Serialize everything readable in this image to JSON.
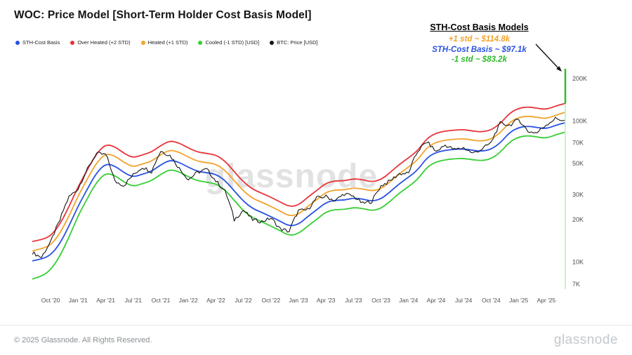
{
  "title": "WOC: Price Model [Short-Term Holder Cost Basis Model]",
  "legend": {
    "items": [
      {
        "label": "STH-Cost Basis",
        "color": "#2952e3"
      },
      {
        "label": "Over Heated (+2 STD)",
        "color": "#e8343a"
      },
      {
        "label": "Heated (+1 STD)",
        "color": "#f2a32c"
      },
      {
        "label": "Cooled (-1 STD) [USD]",
        "color": "#35cf33"
      },
      {
        "label": "BTC: Price [USD]",
        "color": "#161616"
      }
    ]
  },
  "annotation": {
    "title": "STH-Cost Basis Models",
    "lines": [
      {
        "text": "+1 std ~ $114.8k",
        "color": "#f2a32c"
      },
      {
        "text": "STH-Cost Basis ~ $97.1k",
        "color": "#2952e3"
      },
      {
        "text": "-1 std ~ $83.2k",
        "color": "#2db82d"
      }
    ]
  },
  "watermark": "glassnode",
  "footer": {
    "copyright": "© 2025 Glassnode. All Rights Reserved.",
    "brand": "glassnode"
  },
  "chart_data": {
    "type": "line",
    "title": "Short-Term Holder Cost Basis Model",
    "x_start": "2020-08",
    "x_step": "1 month",
    "points": 59,
    "value_unit": "thousand USD",
    "y_scale": "log",
    "y_range": [
      6.3,
      240
    ],
    "grid": false,
    "legend_position": "top-left",
    "y_ticks": [
      {
        "label": "200K",
        "value": 200
      },
      {
        "label": "100K",
        "value": 100
      },
      {
        "label": "70K",
        "value": 70
      },
      {
        "label": "50K",
        "value": 50
      },
      {
        "label": "30K",
        "value": 30
      },
      {
        "label": "20K",
        "value": 20
      },
      {
        "label": "10K",
        "value": 10
      },
      {
        "label": "7K",
        "value": 7
      }
    ],
    "x_ticks": [
      {
        "index": 2,
        "label": "Oct '20"
      },
      {
        "index": 5,
        "label": "Jan '21"
      },
      {
        "index": 8,
        "label": "Apr '21"
      },
      {
        "index": 11,
        "label": "Jul '21"
      },
      {
        "index": 14,
        "label": "Oct '21"
      },
      {
        "index": 17,
        "label": "Jan '22"
      },
      {
        "index": 20,
        "label": "Apr '22"
      },
      {
        "index": 23,
        "label": "Jul '22"
      },
      {
        "index": 26,
        "label": "Oct '22"
      },
      {
        "index": 29,
        "label": "Jan '23"
      },
      {
        "index": 32,
        "label": "Apr '23"
      },
      {
        "index": 35,
        "label": "Jul '23"
      },
      {
        "index": 38,
        "label": "Oct '23"
      },
      {
        "index": 41,
        "label": "Jan '24"
      },
      {
        "index": 44,
        "label": "Apr '24"
      },
      {
        "index": 47,
        "label": "Jul '24"
      },
      {
        "index": 50,
        "label": "Oct '24"
      },
      {
        "index": 53,
        "label": "Jan '25"
      },
      {
        "index": 56,
        "label": "Apr '25"
      }
    ],
    "series": [
      {
        "name": "Over Heated (+2 STD)",
        "color": "#e8343a",
        "width": 1.8,
        "values": [
          14.0,
          14.4,
          15.3,
          18.5,
          24.7,
          34.3,
          45.2,
          58.9,
          68.5,
          65.8,
          58.9,
          54.8,
          57.5,
          60.3,
          67.1,
          72.6,
          69.9,
          64.4,
          60.3,
          58.9,
          57.5,
          52.1,
          43.8,
          37.0,
          32.9,
          30.8,
          28.8,
          26.7,
          24.7,
          25.3,
          28.8,
          32.2,
          36.3,
          37.7,
          37.7,
          39.0,
          38.4,
          37.0,
          38.4,
          43.2,
          49.3,
          54.8,
          61.7,
          75.4,
          82.2,
          84.9,
          86.3,
          87.0,
          84.9,
          83.6,
          86.3,
          95.9,
          113.7,
          123.3,
          126.0,
          123.3,
          120.6,
          127.4,
          133.0
        ]
      },
      {
        "name": "Heated (+1 STD)",
        "color": "#f2a32c",
        "width": 1.8,
        "values": [
          12.0,
          12.4,
          13.2,
          15.9,
          21.2,
          29.5,
          38.9,
          50.7,
          59.0,
          56.6,
          50.7,
          47.2,
          49.6,
          51.9,
          57.8,
          62.5,
          60.2,
          55.5,
          51.9,
          50.7,
          49.6,
          44.8,
          37.8,
          31.9,
          28.3,
          26.6,
          24.8,
          23.0,
          21.2,
          21.8,
          24.8,
          27.7,
          31.3,
          32.5,
          32.5,
          33.6,
          33.0,
          31.9,
          33.0,
          37.2,
          42.5,
          47.2,
          53.1,
          64.9,
          70.8,
          73.2,
          74.3,
          74.9,
          73.2,
          72.0,
          74.3,
          82.6,
          97.9,
          106.2,
          108.6,
          106.2,
          103.8,
          109.7,
          114.8
        ]
      },
      {
        "name": "Cooled (-1 STD)",
        "color": "#35cf33",
        "width": 1.8,
        "values": [
          7.6,
          7.9,
          8.8,
          11.0,
          15.0,
          21.4,
          28.3,
          36.9,
          42.9,
          41.1,
          36.9,
          34.3,
          36.0,
          37.7,
          42.0,
          45.4,
          43.7,
          40.3,
          37.7,
          36.9,
          36.0,
          32.6,
          27.4,
          23.1,
          20.6,
          19.3,
          18.0,
          16.7,
          15.4,
          15.9,
          18.0,
          20.1,
          22.7,
          23.6,
          23.6,
          24.4,
          24.0,
          23.1,
          24.0,
          27.0,
          30.9,
          34.3,
          38.6,
          47.1,
          51.4,
          53.1,
          54.0,
          54.4,
          53.1,
          52.3,
          54.0,
          60.0,
          71.1,
          77.1,
          78.8,
          77.1,
          75.4,
          79.7,
          83.2
        ]
      },
      {
        "name": "STH-Cost Basis",
        "color": "#2952e3",
        "width": 1.8,
        "values": [
          10.2,
          10.5,
          11.2,
          13.5,
          18.0,
          25.0,
          33.0,
          43.0,
          50.0,
          48.0,
          43.0,
          40.0,
          42.0,
          44.0,
          49.0,
          53.0,
          51.0,
          47.0,
          44.0,
          43.0,
          42.0,
          38.0,
          32.0,
          27.0,
          24.0,
          22.5,
          21.0,
          19.5,
          18.0,
          18.5,
          21.0,
          23.5,
          26.5,
          27.5,
          27.5,
          28.5,
          28.0,
          27.0,
          28.0,
          31.5,
          36.0,
          40.0,
          45.0,
          55.0,
          60.0,
          62.0,
          63.0,
          63.5,
          62.0,
          61.0,
          63.0,
          70.0,
          83.0,
          90.0,
          92.0,
          90.0,
          88.0,
          93.0,
          97.1
        ]
      },
      {
        "name": "BTC: Price",
        "color": "#161616",
        "width": 1.1,
        "style": "noisy",
        "values": [
          11.7,
          10.8,
          13.8,
          19.7,
          29.0,
          33.1,
          45.2,
          58.9,
          57.7,
          37.3,
          35.0,
          41.5,
          47.2,
          43.8,
          61.3,
          57.0,
          46.2,
          38.5,
          43.2,
          45.5,
          37.6,
          31.8,
          19.9,
          23.3,
          20.0,
          19.4,
          20.5,
          17.2,
          16.5,
          23.1,
          23.5,
          28.5,
          29.2,
          27.2,
          30.5,
          29.2,
          26.0,
          27.0,
          34.7,
          37.7,
          42.3,
          42.6,
          61.2,
          71.3,
          60.6,
          67.5,
          62.7,
          64.6,
          59.0,
          63.3,
          70.2,
          96.4,
          93.4,
          102.4,
          84.4,
          82.5,
          94.2,
          104.0,
          101.0
        ]
      }
    ]
  }
}
